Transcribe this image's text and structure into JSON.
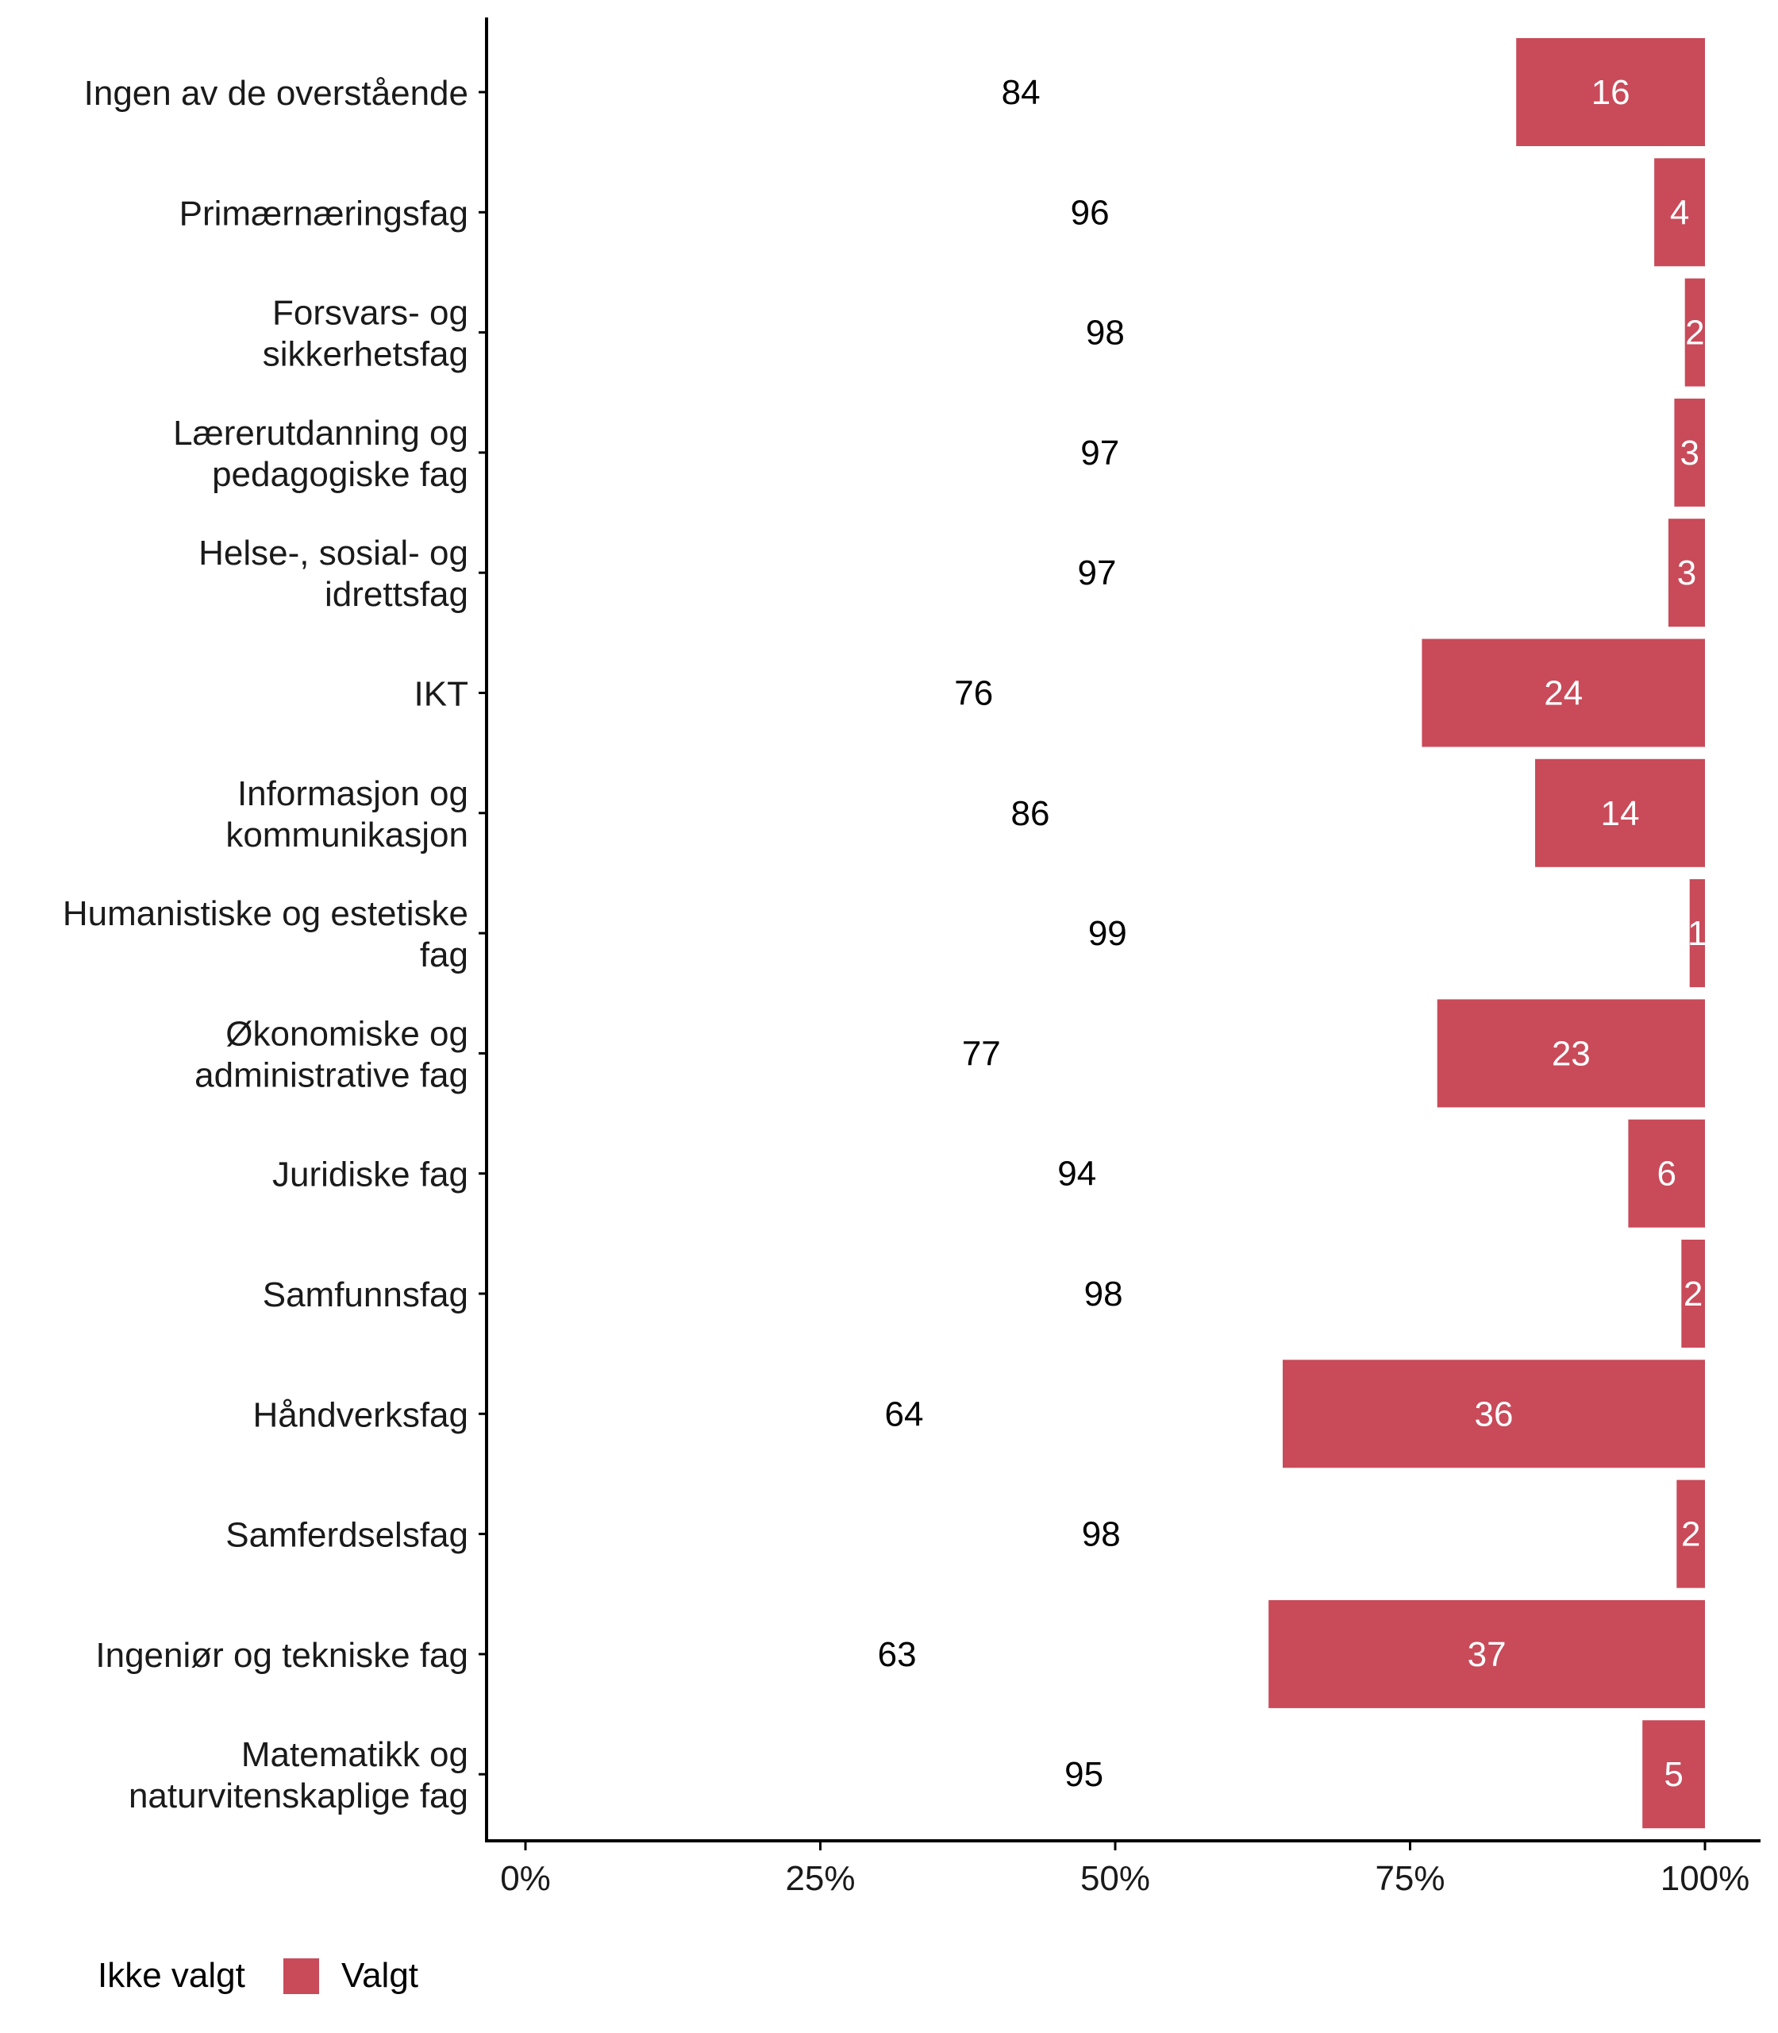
{
  "chart_data": {
    "type": "bar",
    "orientation": "horizontal",
    "stacked_percent": true,
    "categories": [
      "Ingen av de overstående",
      "Primærnæringsfag",
      "Forsvars- og sikkerhetsfag",
      "Lærerutdanning og pedagogiske fag",
      "Helse-, sosial- og idrettsfag",
      "IKT",
      "Informasjon og kommunikasjon",
      "Humanistiske og estetiske fag",
      "Økonomiske og administrative fag",
      "Juridiske fag",
      "Samfunnsfag",
      "Håndverksfag",
      "Samferdselsfag",
      "Ingeniør og tekniske fag",
      "Matematikk og naturvitenskaplige fag"
    ],
    "category_lines": [
      [
        "Ingen av de overstående"
      ],
      [
        "Primærnæringsfag"
      ],
      [
        "Forsvars- og",
        "sikkerhetsfag"
      ],
      [
        "Lærerutdanning og",
        "pedagogiske fag"
      ],
      [
        "Helse-, sosial- og",
        "idrettsfag"
      ],
      [
        "IKT"
      ],
      [
        "Informasjon og",
        "kommunikasjon"
      ],
      [
        "Humanistiske og estetiske",
        "fag"
      ],
      [
        "Økonomiske og",
        "administrative fag"
      ],
      [
        "Juridiske fag"
      ],
      [
        "Samfunnsfag"
      ],
      [
        "Håndverksfag"
      ],
      [
        "Samferdselsfag"
      ],
      [
        "Ingeniør og tekniske fag"
      ],
      [
        "Matematikk og",
        "naturvitenskaplige fag"
      ]
    ],
    "series": [
      {
        "name": "Ikke valgt",
        "color": "#ffffff",
        "values": [
          84,
          96,
          98,
          97,
          97,
          76,
          86,
          99,
          77,
          94,
          98,
          64,
          98,
          63,
          95
        ],
        "exact_share": [
          84,
          95.7,
          98.3,
          97.4,
          96.9,
          76,
          85.6,
          98.7,
          77.3,
          93.5,
          98,
          64.2,
          97.6,
          63,
          94.7
        ],
        "label_color": "#000000"
      },
      {
        "name": "Valgt",
        "color": "#c94a59",
        "values": [
          16,
          4,
          2,
          3,
          3,
          24,
          14,
          1,
          23,
          6,
          2,
          36,
          2,
          37,
          5
        ],
        "label_color": "#ffffff"
      }
    ],
    "xlim": [
      0,
      100
    ],
    "x_ticks": [
      "0%",
      "25%",
      "50%",
      "75%",
      "100%"
    ],
    "x_tick_values": [
      0,
      25,
      50,
      75,
      100
    ],
    "xlabel": "",
    "ylabel": "",
    "grid": false,
    "legend_position": "bottom-left"
  }
}
